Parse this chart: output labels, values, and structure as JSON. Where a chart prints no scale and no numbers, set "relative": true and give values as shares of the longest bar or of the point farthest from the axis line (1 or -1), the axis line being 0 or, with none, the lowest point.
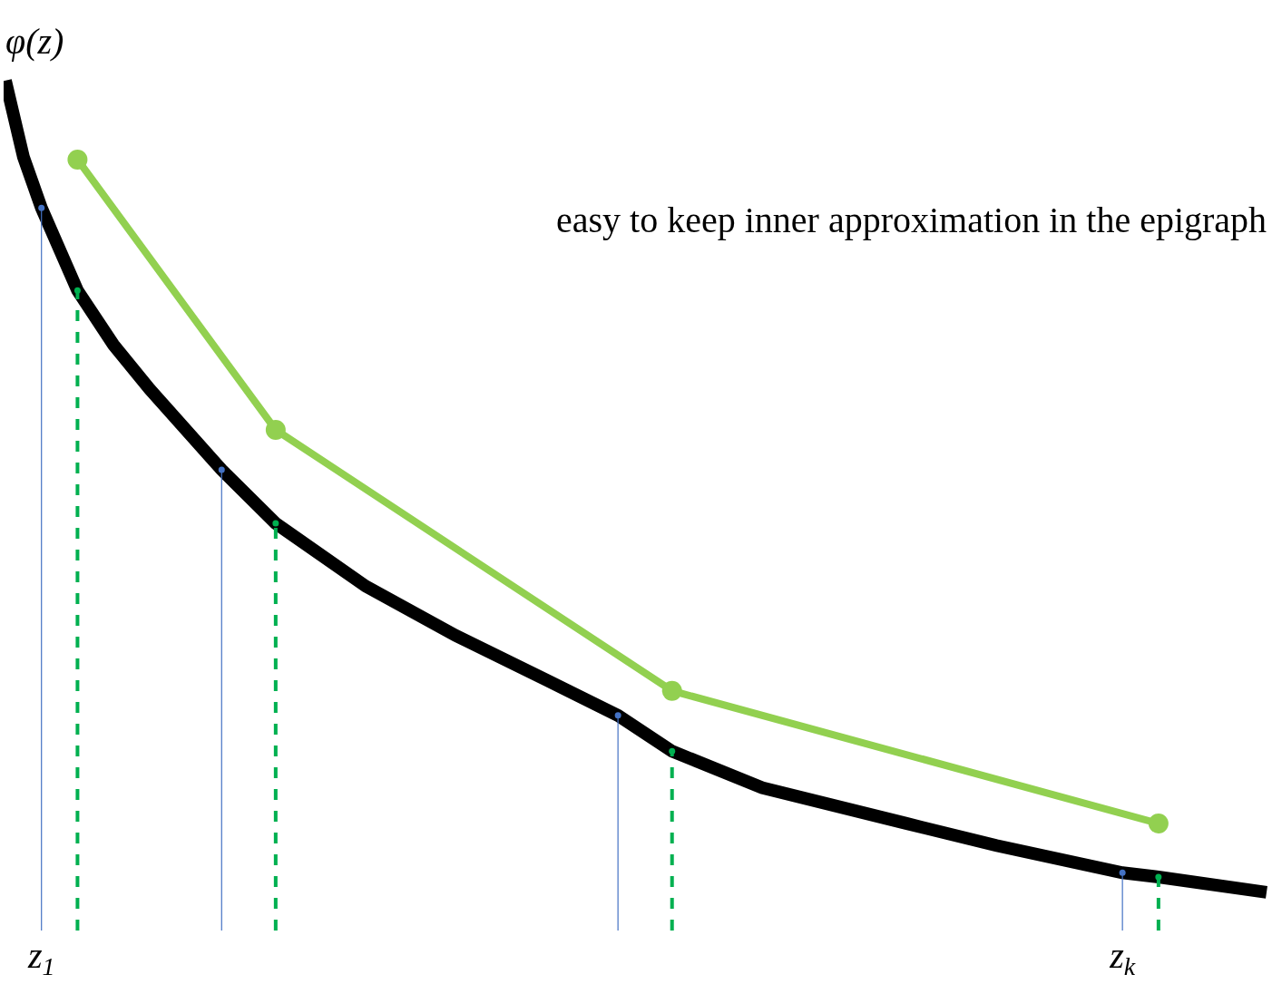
{
  "chart_data": {
    "type": "line",
    "relative": true,
    "ylabel": "φ(z)",
    "categories": [
      null,
      null,
      "z$_{1}$",
      null,
      null,
      null,
      null,
      null,
      null,
      null,
      null,
      null,
      null,
      null,
      null,
      null,
      null,
      null,
      null,
      null,
      null,
      null,
      null,
      null,
      null,
      null,
      null,
      null,
      null,
      null,
      null,
      null,
      null,
      null,
      null,
      null,
      null,
      null,
      null,
      null,
      null,
      null,
      null,
      null,
      null,
      null,
      null,
      null,
      null,
      null,
      null,
      null,
      null,
      null,
      null,
      null,
      null,
      null,
      null,
      null,
      null,
      null,
      "z$_{k}$",
      null,
      null,
      null,
      null,
      null,
      null,
      null,
      null
    ],
    "annotations": [
      "easy to keep inner approximation in the epigraph"
    ],
    "series": [
      {
        "color": "#000000",
        "line_style": "solid",
        "marker": "none",
        "values": [
          1.0,
          0.91,
          0.85,
          null,
          0.753,
          null,
          0.689,
          null,
          0.637,
          null,
          null,
          null,
          0.542,
          null,
          null,
          0.479,
          null,
          null,
          null,
          null,
          0.405,
          null,
          null,
          null,
          null,
          0.347,
          null,
          null,
          null,
          null,
          0.295,
          null,
          null,
          null,
          0.253,
          null,
          null,
          0.211,
          null,
          null,
          null,
          null,
          0.168,
          null,
          null,
          null,
          null,
          null,
          null,
          null,
          0.126,
          null,
          null,
          null,
          null,
          0.1,
          null,
          null,
          null,
          null,
          null,
          null,
          0.068,
          null,
          0.063,
          null,
          null,
          null,
          null,
          null,
          0.045
        ]
      },
      {
        "color": "#92d050",
        "line_style": "solid",
        "marker": "circle",
        "values": [
          null,
          null,
          null,
          null,
          0.907,
          null,
          null,
          null,
          null,
          null,
          null,
          null,
          null,
          null,
          null,
          0.589,
          null,
          null,
          null,
          null,
          null,
          null,
          null,
          null,
          null,
          null,
          null,
          null,
          null,
          null,
          null,
          null,
          null,
          null,
          null,
          null,
          null,
          0.282,
          null,
          null,
          null,
          null,
          null,
          null,
          null,
          null,
          null,
          null,
          null,
          null,
          null,
          null,
          null,
          null,
          null,
          null,
          null,
          null,
          null,
          null,
          null,
          null,
          null,
          null,
          0.126,
          null,
          null,
          null,
          null,
          null,
          null
        ]
      },
      {
        "type": "lollipop",
        "color": "#4472c4",
        "line_style": "solid",
        "marker": "circle",
        "values": [
          null,
          null,
          0.85,
          null,
          null,
          null,
          null,
          null,
          null,
          null,
          null,
          null,
          0.542,
          null,
          null,
          null,
          null,
          null,
          null,
          null,
          null,
          null,
          null,
          null,
          null,
          null,
          null,
          null,
          null,
          null,
          null,
          null,
          null,
          null,
          0.253,
          null,
          null,
          null,
          null,
          null,
          null,
          null,
          null,
          null,
          null,
          null,
          null,
          null,
          null,
          null,
          null,
          null,
          null,
          null,
          null,
          null,
          null,
          null,
          null,
          null,
          null,
          null,
          0.068,
          null,
          null,
          null,
          null,
          null,
          null,
          null,
          null
        ]
      },
      {
        "type": "lollipop",
        "color": "#00b050",
        "line_style": "dashed",
        "marker": "circle",
        "values": [
          null,
          null,
          null,
          null,
          0.753,
          null,
          null,
          null,
          null,
          null,
          null,
          null,
          null,
          null,
          null,
          0.479,
          null,
          null,
          null,
          null,
          null,
          null,
          null,
          null,
          null,
          null,
          null,
          null,
          null,
          null,
          null,
          null,
          null,
          null,
          null,
          null,
          null,
          0.211,
          null,
          null,
          null,
          null,
          null,
          null,
          null,
          null,
          null,
          null,
          null,
          null,
          null,
          null,
          null,
          null,
          null,
          null,
          null,
          null,
          null,
          null,
          null,
          null,
          null,
          null,
          0.063,
          null,
          null,
          null,
          null,
          null,
          null
        ]
      }
    ]
  }
}
